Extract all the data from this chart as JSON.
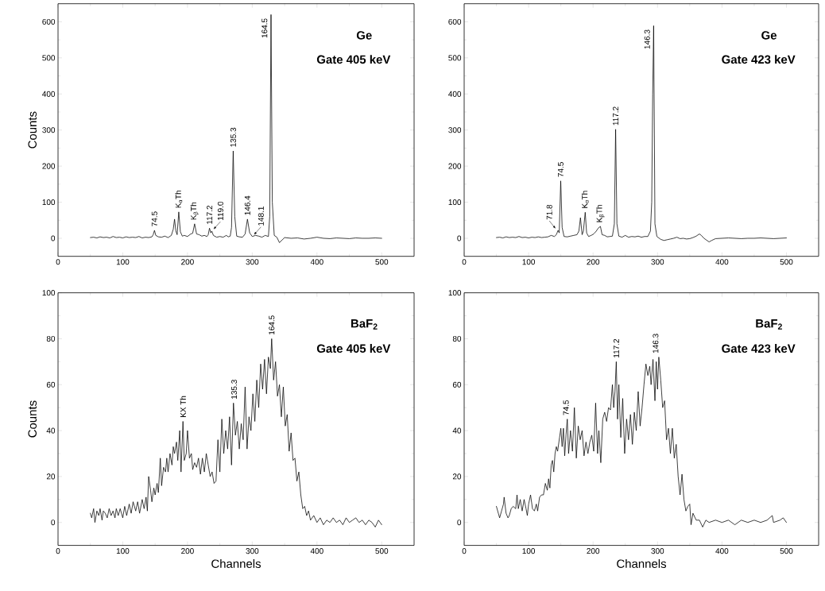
{
  "chart_data": [
    {
      "type": "line",
      "title": "Ge",
      "subtitle": "Gate 405 keV",
      "ylabel": "Counts",
      "color": "#000000",
      "xlim": [
        0,
        550
      ],
      "ylim": [
        -50,
        650
      ],
      "xticks": [
        0,
        {
          "value": 50,
          "label": null
        },
        100,
        {
          "value": 150,
          "label": null
        },
        200,
        {
          "value": 250,
          "label": null
        },
        300,
        {
          "value": 350,
          "label": null
        },
        400,
        {
          "value": 450,
          "label": null
        },
        500
      ],
      "yticks": [
        0,
        {
          "value": 50,
          "label": null
        },
        100,
        {
          "value": 150,
          "label": null
        },
        200,
        {
          "value": 250,
          "label": null
        },
        300,
        {
          "value": 350,
          "label": null
        },
        400,
        {
          "value": 450,
          "label": null
        },
        500,
        {
          "value": 550,
          "label": null
        },
        600
      ],
      "x": [
        50,
        55,
        60,
        65,
        70,
        75,
        80,
        85,
        90,
        95,
        100,
        105,
        110,
        115,
        120,
        125,
        130,
        135,
        140,
        145,
        147,
        149,
        151,
        155,
        160,
        165,
        170,
        175,
        178,
        180,
        182,
        184,
        186.5,
        189,
        192,
        195,
        200,
        205,
        208,
        211,
        214,
        218,
        222,
        226,
        230,
        232,
        234,
        236,
        237.5,
        240,
        245,
        250,
        255,
        260,
        263,
        266,
        268,
        270.6,
        273,
        276,
        280,
        285,
        289,
        292.6,
        296,
        300,
        305,
        310,
        315,
        320,
        325,
        327,
        329,
        331,
        334,
        338,
        342,
        346,
        350,
        360,
        370,
        380,
        390,
        400,
        410,
        420,
        430,
        440,
        450,
        460,
        470,
        480,
        490,
        500
      ],
      "values": [
        2,
        3,
        1,
        4,
        2,
        3,
        1,
        5,
        2,
        3,
        1,
        4,
        2,
        3,
        2,
        5,
        1,
        3,
        2,
        4,
        10,
        22,
        8,
        4,
        3,
        6,
        2,
        8,
        25,
        53,
        20,
        10,
        73,
        18,
        6,
        8,
        5,
        12,
        14,
        40,
        12,
        10,
        6,
        8,
        5,
        10,
        28,
        15,
        20,
        8,
        3,
        5,
        3,
        8,
        4,
        6,
        30,
        242,
        60,
        6,
        4,
        3,
        12,
        53,
        15,
        5,
        8,
        6,
        3,
        8,
        5,
        60,
        620,
        100,
        8,
        3,
        -12,
        -5,
        2,
        0,
        1,
        -2,
        0,
        3,
        0,
        -1,
        1,
        0,
        -1,
        1,
        0,
        0,
        1,
        0
      ],
      "annotations": [
        {
          "text": "74.5",
          "x": 149,
          "y": 22
        },
        {
          "text": "K$_{α}$Th",
          "x": 186.5,
          "y": 73
        },
        {
          "text": "K$_{β}$Th",
          "x": 211,
          "y": 40
        },
        {
          "text": "117.2",
          "x": 234,
          "y": 28
        },
        {
          "text": "119.0",
          "x": 237.5,
          "y": 20
        },
        {
          "text": "135.3",
          "x": 270.6,
          "y": 242
        },
        {
          "text": "146.4",
          "x": 292.6,
          "y": 53
        },
        {
          "text": "148.1",
          "x": 300,
          "y": 5
        },
        {
          "text": "164.5",
          "x": 329,
          "y": 620
        }
      ]
    },
    {
      "type": "line",
      "title": "Ge",
      "subtitle": "Gate 423 keV",
      "color": "#000000",
      "xlim": [
        0,
        550
      ],
      "ylim": [
        -50,
        650
      ],
      "xticks": [
        0,
        {
          "value": 50,
          "label": null
        },
        100,
        {
          "value": 150,
          "label": null
        },
        200,
        {
          "value": 250,
          "label": null
        },
        300,
        {
          "value": 350,
          "label": null
        },
        400,
        {
          "value": 450,
          "label": null
        },
        500
      ],
      "yticks": [
        0,
        {
          "value": 50,
          "label": null
        },
        100,
        {
          "value": 150,
          "label": null
        },
        200,
        {
          "value": 250,
          "label": null
        },
        300,
        {
          "value": 350,
          "label": null
        },
        400,
        {
          "value": 450,
          "label": null
        },
        500,
        {
          "value": 550,
          "label": null
        },
        600
      ],
      "x": [
        50,
        55,
        60,
        65,
        70,
        75,
        80,
        85,
        90,
        95,
        100,
        105,
        110,
        115,
        120,
        125,
        130,
        135,
        140,
        143,
        145.7,
        147.5,
        149.8,
        152,
        155,
        160,
        165,
        170,
        175,
        178,
        180.4,
        183,
        185,
        187.8,
        190,
        193,
        197,
        201,
        205,
        208,
        211.4,
        214,
        218,
        222,
        226,
        230,
        233,
        235,
        237,
        240,
        245,
        250,
        255,
        260,
        265,
        270,
        275,
        280,
        285,
        289,
        291,
        292.5,
        294,
        296,
        299,
        305,
        310,
        315,
        320,
        325,
        330,
        335,
        340,
        345,
        350,
        355,
        360,
        365,
        368,
        372,
        376,
        380,
        384,
        390,
        400,
        410,
        420,
        430,
        440,
        450,
        460,
        470,
        480,
        490,
        500
      ],
      "values": [
        2,
        3,
        1,
        4,
        2,
        3,
        2,
        5,
        2,
        3,
        1,
        3,
        2,
        4,
        2,
        3,
        4,
        8,
        5,
        10,
        22,
        15,
        159,
        30,
        5,
        4,
        6,
        8,
        10,
        20,
        57,
        10,
        20,
        72,
        15,
        5,
        8,
        12,
        20,
        28,
        33,
        10,
        8,
        4,
        5,
        6,
        40,
        302,
        40,
        6,
        3,
        8,
        3,
        5,
        4,
        6,
        3,
        5,
        5,
        20,
        100,
        400,
        589,
        40,
        5,
        -3,
        -6,
        -4,
        -2,
        0,
        3,
        -1,
        0,
        -2,
        -1,
        2,
        6,
        12,
        8,
        0,
        -5,
        -10,
        -6,
        -1,
        0,
        1,
        0,
        -1,
        0,
        0,
        1,
        0,
        -1,
        0,
        1
      ],
      "annotations": [
        {
          "text": "71.8",
          "x": 145.7,
          "y": 22
        },
        {
          "text": "74.5",
          "x": 149.8,
          "y": 159
        },
        {
          "text": "K$_{α}$Th",
          "x": 187.8,
          "y": 72
        },
        {
          "text": "K$_{β}$Th",
          "x": 211.4,
          "y": 33
        },
        {
          "text": "117.2",
          "x": 235,
          "y": 302
        },
        {
          "text": "146.3",
          "x": 294,
          "y": 589
        }
      ]
    },
    {
      "type": "line",
      "title": "BaF$_{2}$",
      "subtitle": "Gate 405 keV",
      "xlabel": "Channels",
      "ylabel": "Counts",
      "color": "#000000",
      "xlim": [
        0,
        550
      ],
      "ylim": [
        -10,
        100
      ],
      "xticks": [
        0,
        {
          "value": 50,
          "label": null
        },
        100,
        {
          "value": 150,
          "label": null
        },
        200,
        {
          "value": 250,
          "label": null
        },
        300,
        {
          "value": 350,
          "label": null
        },
        400,
        {
          "value": 450,
          "label": null
        },
        500
      ],
      "yticks": [
        0,
        {
          "value": 10,
          "label": null
        },
        20,
        {
          "value": 30,
          "label": null
        },
        40,
        {
          "value": 50,
          "label": null
        },
        60,
        {
          "value": 70,
          "label": null
        },
        80,
        {
          "value": 90,
          "label": null
        },
        100
      ],
      "x": [
        50,
        52,
        55,
        57,
        60,
        63,
        65,
        68,
        70,
        73,
        76,
        79,
        82,
        85,
        88,
        90,
        93,
        96,
        100,
        103,
        106,
        110,
        113,
        116,
        120,
        123,
        126,
        130,
        133,
        136,
        138,
        140,
        143,
        145,
        148,
        150,
        153,
        155,
        158,
        160,
        163,
        166,
        168,
        170,
        173,
        176,
        178,
        180,
        183,
        185,
        188,
        190,
        193,
        195,
        198,
        200,
        203,
        206,
        208,
        211,
        214,
        217,
        220,
        223,
        226,
        229,
        232,
        235,
        238,
        241,
        244,
        247,
        250,
        253,
        256,
        259,
        262,
        265,
        268,
        271,
        274,
        277,
        280,
        283,
        286,
        289,
        292,
        295,
        298,
        301,
        304,
        307,
        310,
        313,
        316,
        319,
        322,
        325,
        328,
        330,
        333,
        336,
        339,
        342,
        345,
        348,
        351,
        354,
        357,
        360,
        363,
        366,
        369,
        372,
        375,
        378,
        381,
        384,
        387,
        390,
        395,
        400,
        405,
        410,
        415,
        420,
        425,
        430,
        435,
        440,
        445,
        450,
        455,
        460,
        465,
        470,
        475,
        480,
        485,
        490,
        495,
        500
      ],
      "values": [
        4,
        2,
        6,
        0,
        5,
        3,
        6,
        1,
        5,
        4,
        2,
        6,
        3,
        5,
        2,
        6,
        3,
        6,
        2,
        7,
        3,
        8,
        4,
        9,
        5,
        9,
        4,
        10,
        6,
        11,
        5,
        20,
        14,
        9,
        15,
        12,
        17,
        13,
        28,
        16,
        24,
        22,
        28,
        22,
        30,
        25,
        33,
        30,
        35,
        27,
        40,
        22,
        44,
        27,
        30,
        40,
        28,
        30,
        23,
        26,
        24,
        28,
        21,
        28,
        22,
        30,
        25,
        20,
        22,
        17,
        18,
        36,
        22,
        45,
        30,
        40,
        32,
        46,
        25,
        52,
        38,
        44,
        32,
        43,
        36,
        59,
        32,
        46,
        40,
        56,
        44,
        62,
        50,
        69,
        58,
        71,
        56,
        72,
        67,
        80,
        62,
        70,
        55,
        60,
        46,
        59,
        42,
        47,
        31,
        39,
        27,
        28,
        18,
        22,
        12,
        6,
        7,
        3,
        5,
        1,
        3,
        0,
        2,
        -1,
        1,
        0,
        2,
        0,
        1,
        -1,
        2,
        0,
        1,
        2,
        0,
        1,
        -1,
        1,
        0,
        -2,
        1,
        -1
      ],
      "annotations": [
        {
          "text": "KX Th",
          "x": 193,
          "y": 44
        },
        {
          "text": "135.3",
          "x": 272,
          "y": 52
        },
        {
          "text": "164.5",
          "x": 330,
          "y": 80
        }
      ]
    },
    {
      "type": "line",
      "title": "BaF$_{2}$",
      "subtitle": "Gate 423 keV",
      "xlabel": "Channels",
      "color": "#000000",
      "xlim": [
        0,
        550
      ],
      "ylim": [
        -10,
        100
      ],
      "xticks": [
        0,
        {
          "value": 50,
          "label": null
        },
        100,
        {
          "value": 150,
          "label": null
        },
        200,
        {
          "value": 250,
          "label": null
        },
        300,
        {
          "value": 350,
          "label": null
        },
        400,
        {
          "value": 450,
          "label": null
        },
        500
      ],
      "yticks": [
        0,
        {
          "value": 10,
          "label": null
        },
        20,
        {
          "value": 30,
          "label": null
        },
        40,
        {
          "value": 50,
          "label": null
        },
        60,
        {
          "value": 70,
          "label": null
        },
        80,
        {
          "value": 90,
          "label": null
        },
        100
      ],
      "x": [
        50,
        53,
        55,
        58,
        61,
        62,
        65,
        68,
        70,
        73,
        76,
        80,
        82,
        84,
        87,
        90,
        93,
        96,
        98,
        100,
        103,
        106,
        109,
        112,
        114,
        117,
        120,
        123,
        126,
        129,
        131,
        133,
        135,
        137,
        139,
        141,
        143,
        145,
        148,
        150,
        152,
        154,
        156,
        158,
        160,
        162,
        165,
        168,
        171,
        174,
        177,
        180,
        183,
        186,
        189,
        192,
        195,
        198,
        201,
        204,
        207,
        209,
        212,
        215,
        218,
        221,
        224,
        227,
        230,
        232,
        234,
        236,
        238,
        240,
        243,
        246,
        249,
        252,
        255,
        258,
        261,
        264,
        267,
        270,
        273,
        276,
        279,
        282,
        285,
        288,
        290,
        293,
        296,
        298,
        300,
        302,
        305,
        308,
        311,
        314,
        317,
        320,
        323,
        326,
        329,
        332,
        335,
        338,
        341,
        344,
        347,
        350,
        352,
        355,
        360,
        365,
        370,
        375,
        380,
        390,
        400,
        410,
        420,
        430,
        440,
        450,
        460,
        470,
        478,
        480,
        490,
        495,
        500
      ],
      "values": [
        7,
        4,
        2,
        5,
        8,
        11,
        4,
        2,
        3,
        6,
        7,
        6,
        12,
        6,
        10,
        5,
        10,
        6,
        3,
        8,
        12,
        6,
        5,
        8,
        5,
        11,
        12,
        12,
        17,
        14,
        19,
        15,
        25,
        27,
        22,
        30,
        33,
        31,
        37,
        41,
        33,
        41,
        29,
        38,
        45,
        30,
        40,
        31,
        50,
        28,
        42,
        36,
        40,
        29,
        35,
        30,
        35,
        38,
        31,
        52,
        30,
        40,
        26,
        45,
        48,
        44,
        50,
        49,
        60,
        50,
        57,
        70,
        45,
        60,
        37,
        54,
        30,
        45,
        36,
        47,
        34,
        48,
        40,
        57,
        42,
        50,
        60,
        69,
        64,
        68,
        60,
        71,
        53,
        70,
        58,
        72,
        62,
        50,
        53,
        36,
        41,
        30,
        41,
        28,
        34,
        20,
        12,
        21,
        10,
        5,
        7,
        8,
        -1,
        4,
        1,
        1,
        -2,
        1,
        0,
        1,
        0,
        1,
        -1,
        1,
        0,
        1,
        0,
        1,
        3,
        0,
        1,
        2,
        0
      ],
      "annotations": [
        {
          "text": "74.5",
          "x": 158,
          "y": 45
        },
        {
          "text": "117.2",
          "x": 236,
          "y": 70
        },
        {
          "text": "146.3",
          "x": 297,
          "y": 72
        }
      ]
    }
  ]
}
